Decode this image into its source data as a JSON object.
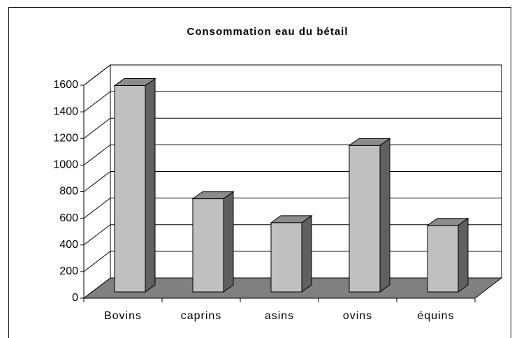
{
  "chart_data": {
    "type": "bar",
    "title": "Consommation eau du bétail",
    "categories": [
      "Bovins",
      "caprins",
      "asins",
      "ovins",
      "équins"
    ],
    "values": [
      1550,
      700,
      520,
      1100,
      500
    ],
    "color": "#c0c0c0",
    "ylim": [
      0,
      1600
    ],
    "yticks": [
      0,
      200,
      400,
      600,
      800,
      1000,
      1200,
      1400,
      1600
    ],
    "grid": true
  }
}
